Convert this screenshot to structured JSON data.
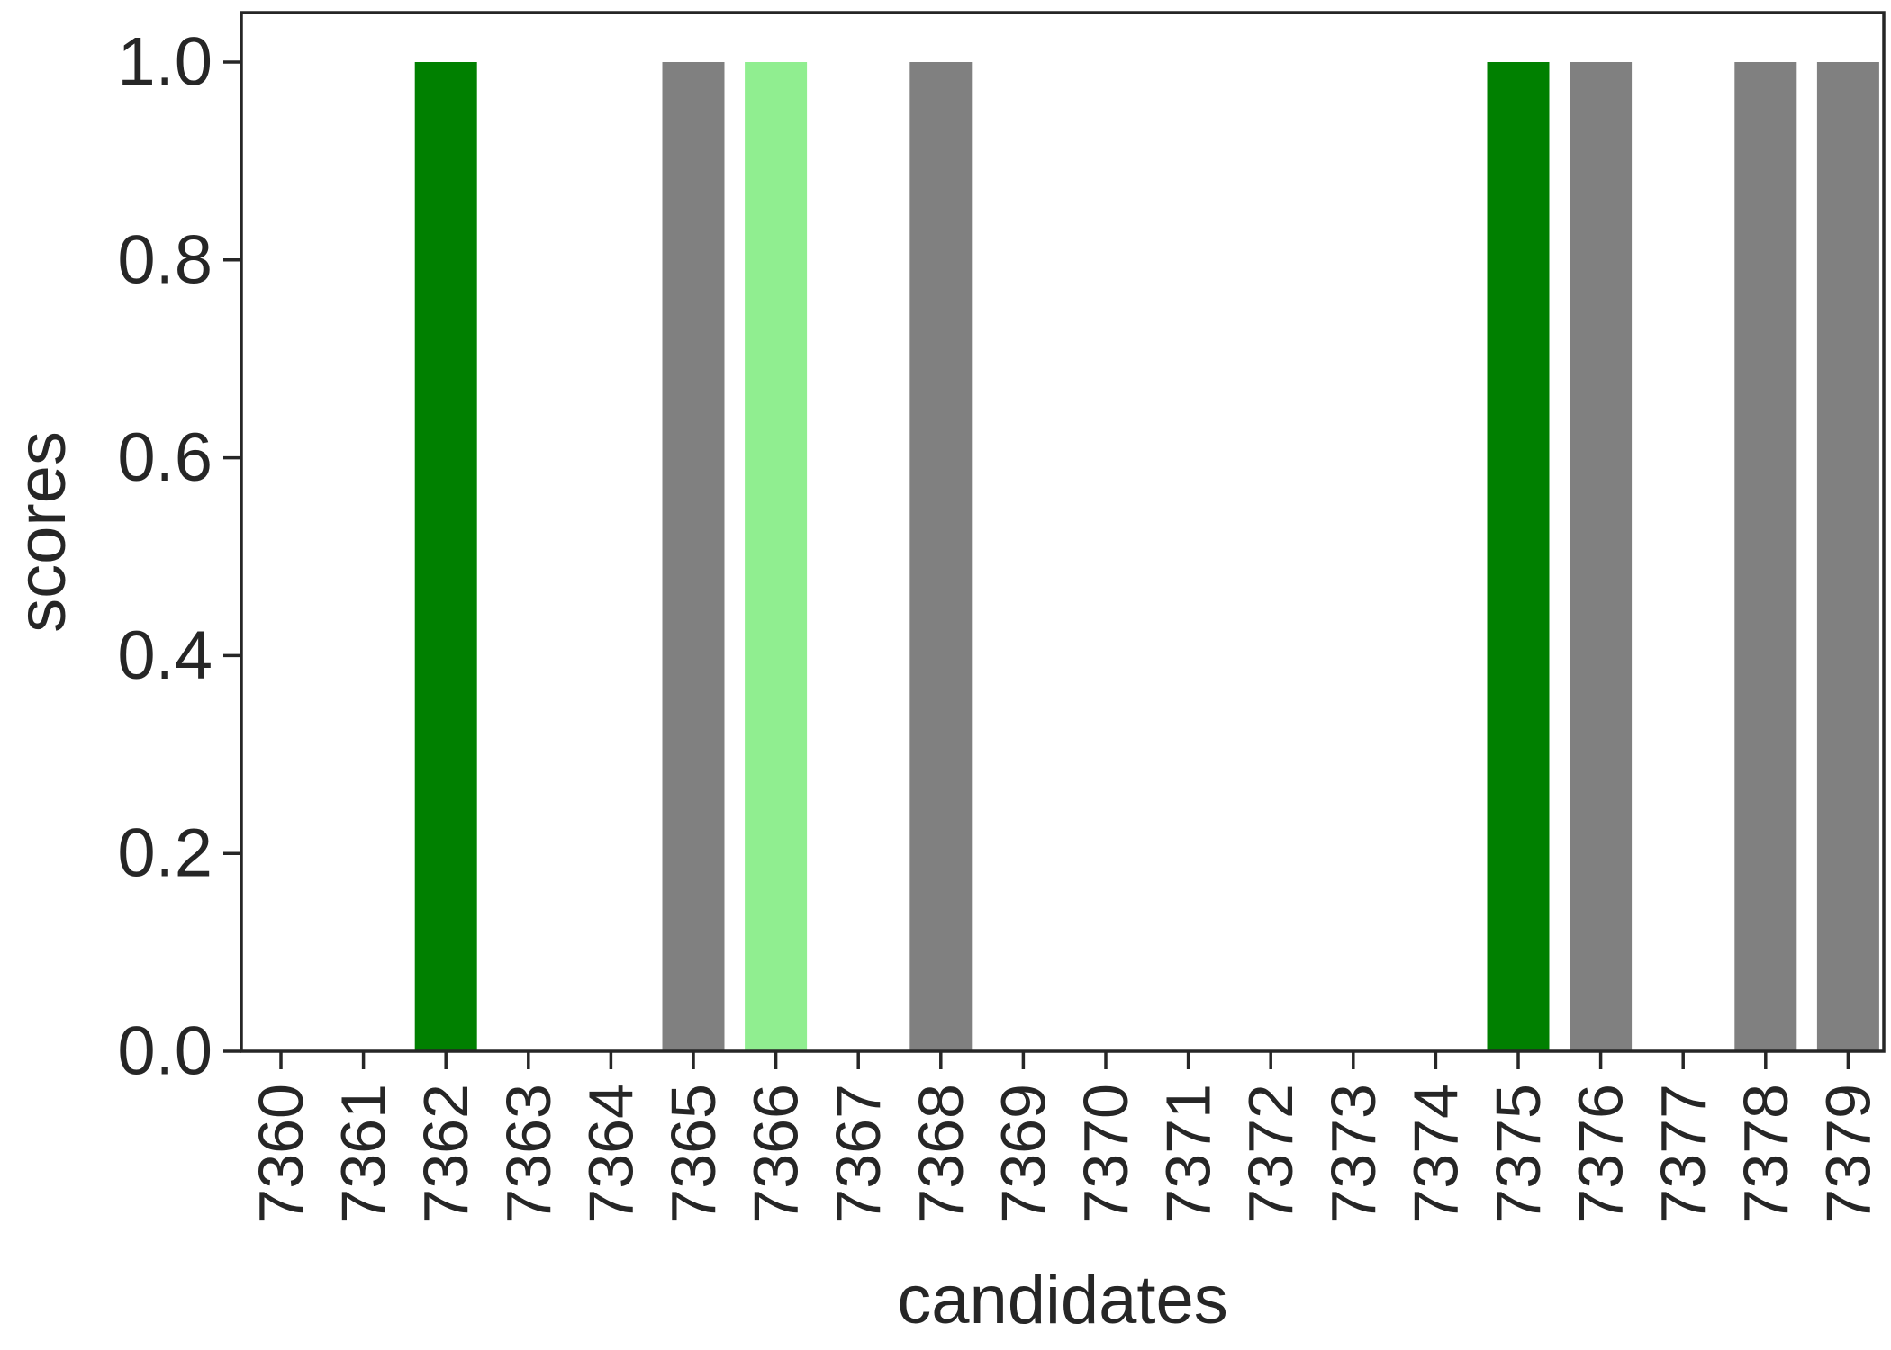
{
  "chart_data": {
    "type": "bar",
    "xlabel": "candidates",
    "ylabel": "scores",
    "ylim": [
      0,
      1.05
    ],
    "yticks": [
      "0.0",
      "0.2",
      "0.4",
      "0.6",
      "0.8",
      "1.0"
    ],
    "grid": false,
    "legend": "none",
    "categories": [
      "7360",
      "7361",
      "7362",
      "7363",
      "7364",
      "7365",
      "7366",
      "7367",
      "7368",
      "7369",
      "7370",
      "7371",
      "7372",
      "7373",
      "7374",
      "7375",
      "7376",
      "7377",
      "7378",
      "7379"
    ],
    "values": [
      0,
      0,
      1,
      0,
      0,
      1,
      1,
      0,
      1,
      0,
      0,
      0,
      0,
      0,
      0,
      1,
      1,
      0,
      1,
      1
    ],
    "bar_colors": [
      "#808080",
      "#808080",
      "#008000",
      "#808080",
      "#808080",
      "#808080",
      "#90ee90",
      "#808080",
      "#808080",
      "#808080",
      "#808080",
      "#808080",
      "#808080",
      "#808080",
      "#808080",
      "#008000",
      "#808080",
      "#808080",
      "#808080",
      "#808080"
    ],
    "colors": {
      "axis": "#262626",
      "text": "#262626",
      "background": "#ffffff"
    }
  }
}
